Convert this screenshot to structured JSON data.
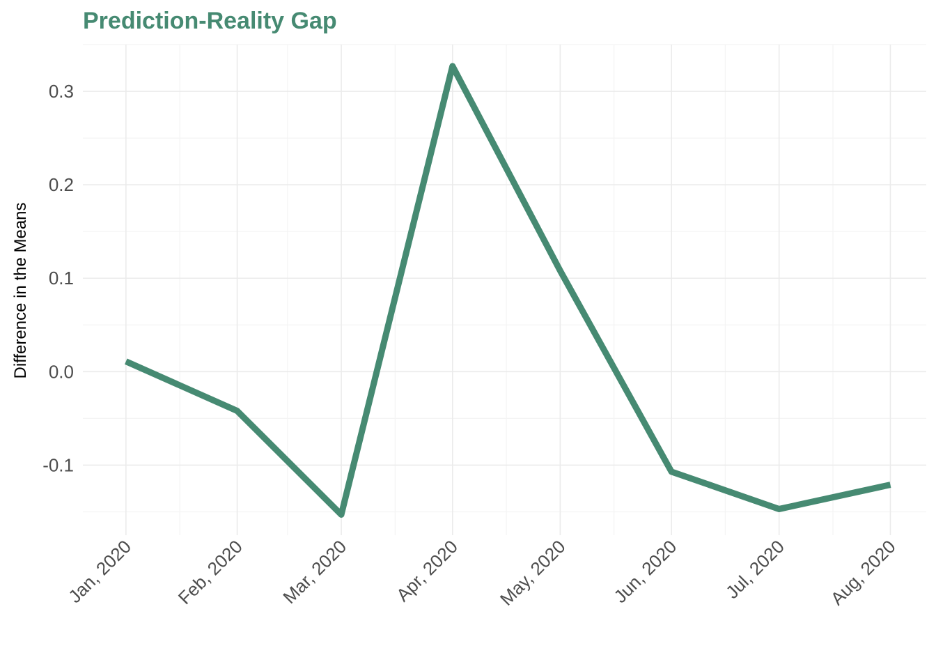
{
  "chart_data": {
    "type": "line",
    "title": "Prediction-Reality Gap",
    "xlabel": "",
    "ylabel": "Difference in the Means",
    "x": [
      "Jan, 2020",
      "Feb, 2020",
      "Mar, 2020",
      "Apr, 2020",
      "May, 2020",
      "Jun, 2020",
      "Jul, 2020",
      "Aug, 2020"
    ],
    "x_dates": [
      "2020-01-01",
      "2020-02-01",
      "2020-03-01",
      "2020-04-01",
      "2020-05-01",
      "2020-06-01",
      "2020-07-01",
      "2020-08-01"
    ],
    "series": [
      {
        "values": [
          0.011,
          -0.042,
          -0.153,
          0.327,
          0.108,
          -0.107,
          -0.147,
          -0.121
        ]
      }
    ],
    "yticks": [
      0.3,
      0.2,
      0.1,
      0.0,
      -0.1
    ],
    "ytick_labels": [
      "0.3",
      "0.2",
      "0.1",
      "0.0",
      "-0.1"
    ],
    "ylim": [
      -0.175,
      0.35
    ],
    "grid": true,
    "legend": "none",
    "colors": {
      "line": "#468a72",
      "title": "#468a72",
      "grid_major": "#ebebeb",
      "grid_minor": "#f4f4f4",
      "tick_text": "#4d4d4d"
    }
  }
}
